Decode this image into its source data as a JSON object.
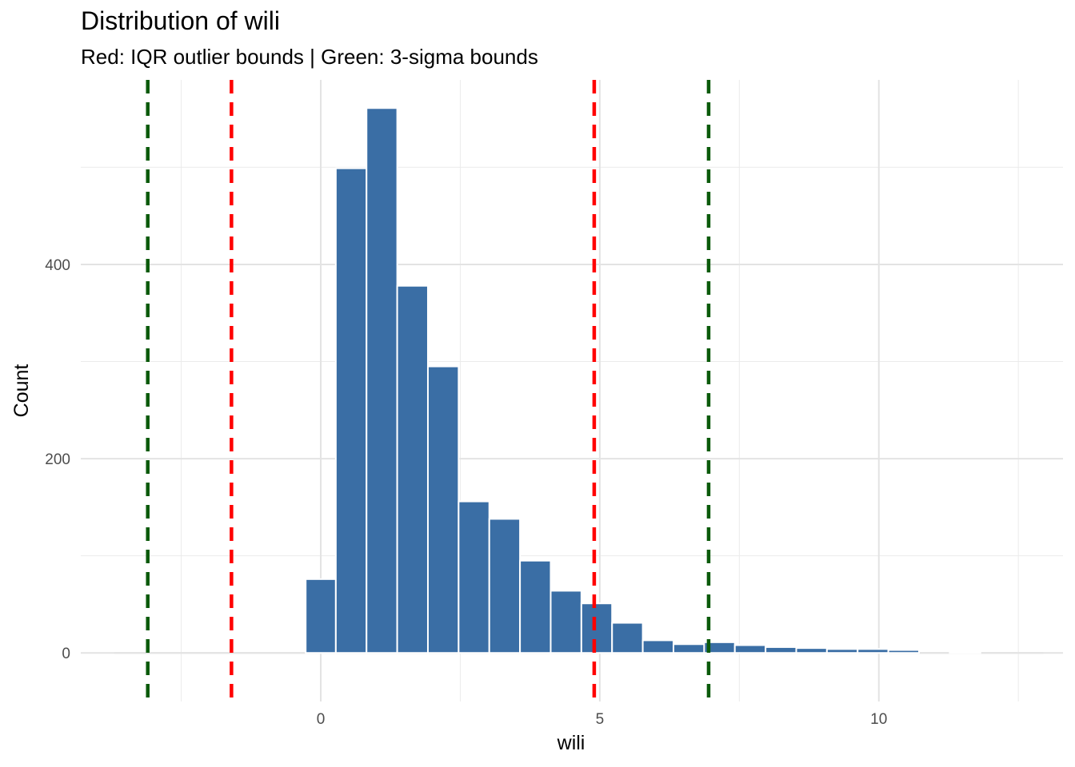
{
  "chart_data": {
    "type": "bar",
    "title": "Distribution of wili",
    "subtitle": "Red: IQR outlier bounds | Green: 3-sigma bounds",
    "xlabel": "wili",
    "ylabel": "Count",
    "xlim": [
      -4.3,
      13.3
    ],
    "ylim": [
      -50,
      590
    ],
    "x_ticks": [
      0,
      5,
      10
    ],
    "y_ticks": [
      0,
      200,
      400
    ],
    "grid": true,
    "bar_color": "#3A6EA5",
    "bar_edge_color": "#ffffff",
    "bins": [
      {
        "x0": -0.27,
        "x1": 0.27,
        "count": 76
      },
      {
        "x0": 0.27,
        "x1": 0.82,
        "count": 499
      },
      {
        "x0": 0.82,
        "x1": 1.37,
        "count": 561
      },
      {
        "x0": 1.37,
        "x1": 1.92,
        "count": 378
      },
      {
        "x0": 1.92,
        "x1": 2.47,
        "count": 295
      },
      {
        "x0": 2.47,
        "x1": 3.02,
        "count": 156
      },
      {
        "x0": 3.02,
        "x1": 3.57,
        "count": 138
      },
      {
        "x0": 3.57,
        "x1": 4.12,
        "count": 95
      },
      {
        "x0": 4.12,
        "x1": 4.67,
        "count": 64
      },
      {
        "x0": 4.67,
        "x1": 5.22,
        "count": 51
      },
      {
        "x0": 5.22,
        "x1": 5.77,
        "count": 31
      },
      {
        "x0": 5.77,
        "x1": 6.32,
        "count": 13
      },
      {
        "x0": 6.32,
        "x1": 6.87,
        "count": 9
      },
      {
        "x0": 6.87,
        "x1": 7.42,
        "count": 11
      },
      {
        "x0": 7.42,
        "x1": 7.97,
        "count": 8
      },
      {
        "x0": 7.97,
        "x1": 8.52,
        "count": 6
      },
      {
        "x0": 8.52,
        "x1": 9.07,
        "count": 5
      },
      {
        "x0": 9.07,
        "x1": 9.62,
        "count": 4
      },
      {
        "x0": 9.62,
        "x1": 10.17,
        "count": 4
      },
      {
        "x0": 10.17,
        "x1": 10.72,
        "count": 3
      },
      {
        "x0": 10.72,
        "x1": 11.27,
        "count": 0
      },
      {
        "x0": 11.27,
        "x1": 11.82,
        "count": 1
      },
      {
        "x0": 11.82,
        "x1": 12.37,
        "count": 0
      },
      {
        "x0": 12.37,
        "x1": 12.92,
        "count": 0
      }
    ],
    "vlines": [
      {
        "group": "3-sigma",
        "x": -3.1,
        "color": "#0B5A0B"
      },
      {
        "group": "IQR",
        "x": -1.6,
        "color": "#FF0000"
      },
      {
        "group": "IQR",
        "x": 4.9,
        "color": "#FF0000"
      },
      {
        "group": "3-sigma",
        "x": 6.95,
        "color": "#0B5A0B"
      }
    ]
  }
}
